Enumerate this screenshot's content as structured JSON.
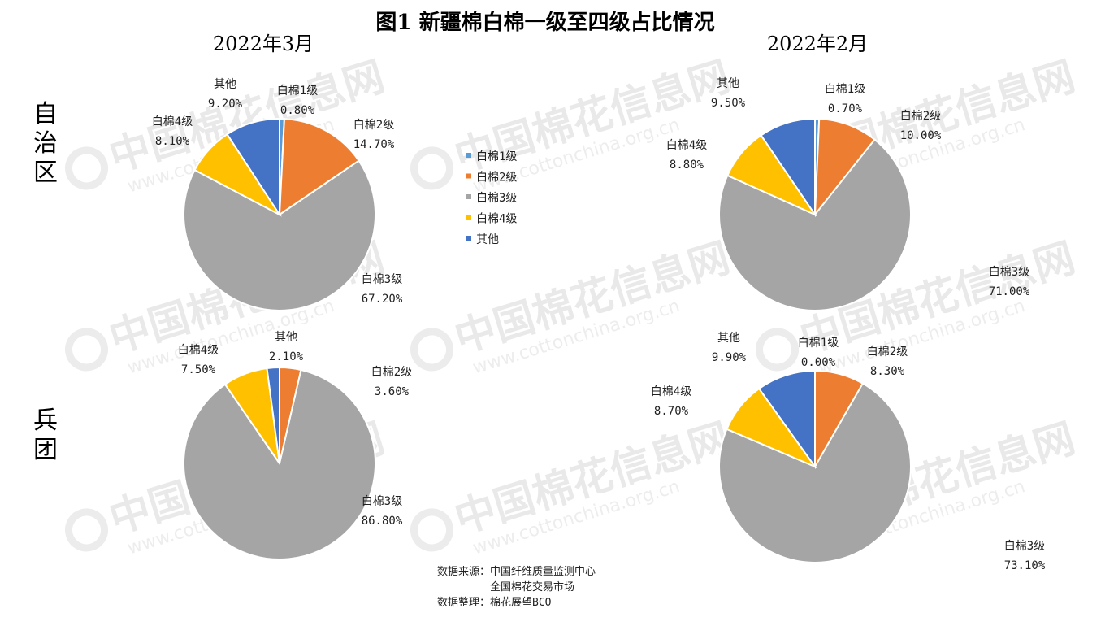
{
  "title": "图1 新疆棉白棉一级至四级占比情况",
  "periods": [
    "2022年3月",
    "2022年2月"
  ],
  "regions": [
    "自治区",
    "兵团"
  ],
  "watermark": {
    "cn": "中国棉花信息网",
    "url": "www.cottonchina.org.cn"
  },
  "colors": {
    "白棉1级": "#5b9bd5",
    "白棉2级": "#ed7d31",
    "白棉3级": "#a5a5a5",
    "白棉4级": "#ffc000",
    "其他": "#4472c4"
  },
  "legend": [
    "白棉1级",
    "白棉2级",
    "白棉3级",
    "白棉4级",
    "其他"
  ],
  "chart_data": [
    {
      "type": "pie",
      "period": "2022年3月",
      "region": "自治区",
      "categories": [
        "白棉1级",
        "白棉2级",
        "白棉3级",
        "白棉4级",
        "其他"
      ],
      "values": [
        0.8,
        14.7,
        67.2,
        8.1,
        9.2
      ],
      "labels": [
        "0.80%",
        "14.70%",
        "67.20%",
        "8.10%",
        "9.20%"
      ]
    },
    {
      "type": "pie",
      "period": "2022年2月",
      "region": "自治区",
      "categories": [
        "白棉1级",
        "白棉2级",
        "白棉3级",
        "白棉4级",
        "其他"
      ],
      "values": [
        0.7,
        10.0,
        71.0,
        8.8,
        9.5
      ],
      "labels": [
        "0.70%",
        "10.00%",
        "71.00%",
        "8.80%",
        "9.50%"
      ]
    },
    {
      "type": "pie",
      "period": "2022年3月",
      "region": "兵团",
      "categories": [
        "白棉1级",
        "白棉2级",
        "白棉3级",
        "白棉4级",
        "其他"
      ],
      "values": [
        0.0,
        3.6,
        86.8,
        7.5,
        2.1
      ],
      "labels": [
        "",
        "3.60%",
        "86.80%",
        "7.50%",
        "2.10%"
      ]
    },
    {
      "type": "pie",
      "period": "2022年2月",
      "region": "兵团",
      "categories": [
        "白棉1级",
        "白棉2级",
        "白棉3级",
        "白棉4级",
        "其他"
      ],
      "values": [
        0.0,
        8.3,
        73.1,
        8.7,
        9.9
      ],
      "labels": [
        "0.00%",
        "8.30%",
        "73.10%",
        "8.70%",
        "9.90%"
      ]
    }
  ],
  "source": {
    "line1_label": "数据来源：",
    "line1_value": "中国纤维质量监测中心",
    "line2_value": "全国棉花交易市场",
    "line3_label": "数据整理：",
    "line3_value": "棉花展望BCO"
  }
}
